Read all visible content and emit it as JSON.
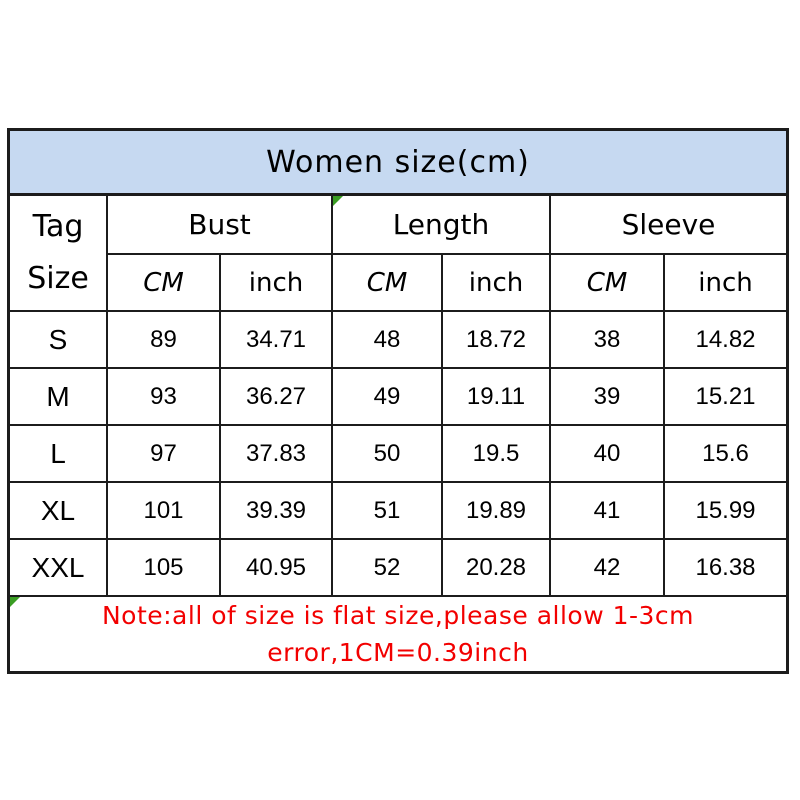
{
  "table": {
    "title": "Women size(cm)",
    "header": {
      "tag_line1": "Tag",
      "tag_line2": "Size",
      "group_bust": "Bust",
      "group_length": "Length",
      "group_sleeve": "Sleeve",
      "unit_cm": "CM",
      "unit_inch": "inch"
    },
    "note_line1": "Note:all of size is flat size,please allow 1-3cm",
    "note_line2": "error,1CM=0.39inch"
  },
  "chart_data": {
    "type": "table",
    "title": "Women size(cm)",
    "columns": [
      "Tag Size",
      "Bust CM",
      "Bust inch",
      "Length CM",
      "Length inch",
      "Sleeve CM",
      "Sleeve inch"
    ],
    "rows": [
      {
        "tag": "S",
        "bust_cm": 89,
        "bust_inch": 34.71,
        "length_cm": 48,
        "length_inch": 18.72,
        "sleeve_cm": 38,
        "sleeve_inch": 14.82
      },
      {
        "tag": "M",
        "bust_cm": 93,
        "bust_inch": 36.27,
        "length_cm": 49,
        "length_inch": 19.11,
        "sleeve_cm": 39,
        "sleeve_inch": 15.21
      },
      {
        "tag": "L",
        "bust_cm": 97,
        "bust_inch": 37.83,
        "length_cm": 50,
        "length_inch": 19.5,
        "sleeve_cm": 40,
        "sleeve_inch": 15.6
      },
      {
        "tag": "XL",
        "bust_cm": 101,
        "bust_inch": 39.39,
        "length_cm": 51,
        "length_inch": 19.89,
        "sleeve_cm": 41,
        "sleeve_inch": 15.99
      },
      {
        "tag": "XXL",
        "bust_cm": 105,
        "bust_inch": 40.95,
        "length_cm": 52,
        "length_inch": 20.28,
        "sleeve_cm": 42,
        "sleeve_inch": 16.38
      }
    ],
    "note": "Note:all of size is flat size,please allow 1-3cm error,1CM=0.39inch"
  },
  "colors": {
    "title_background": "#c6d9f1",
    "note_text": "#f20000",
    "corner_marker_green": "#3a9d23",
    "border": "#1c1c1c"
  }
}
